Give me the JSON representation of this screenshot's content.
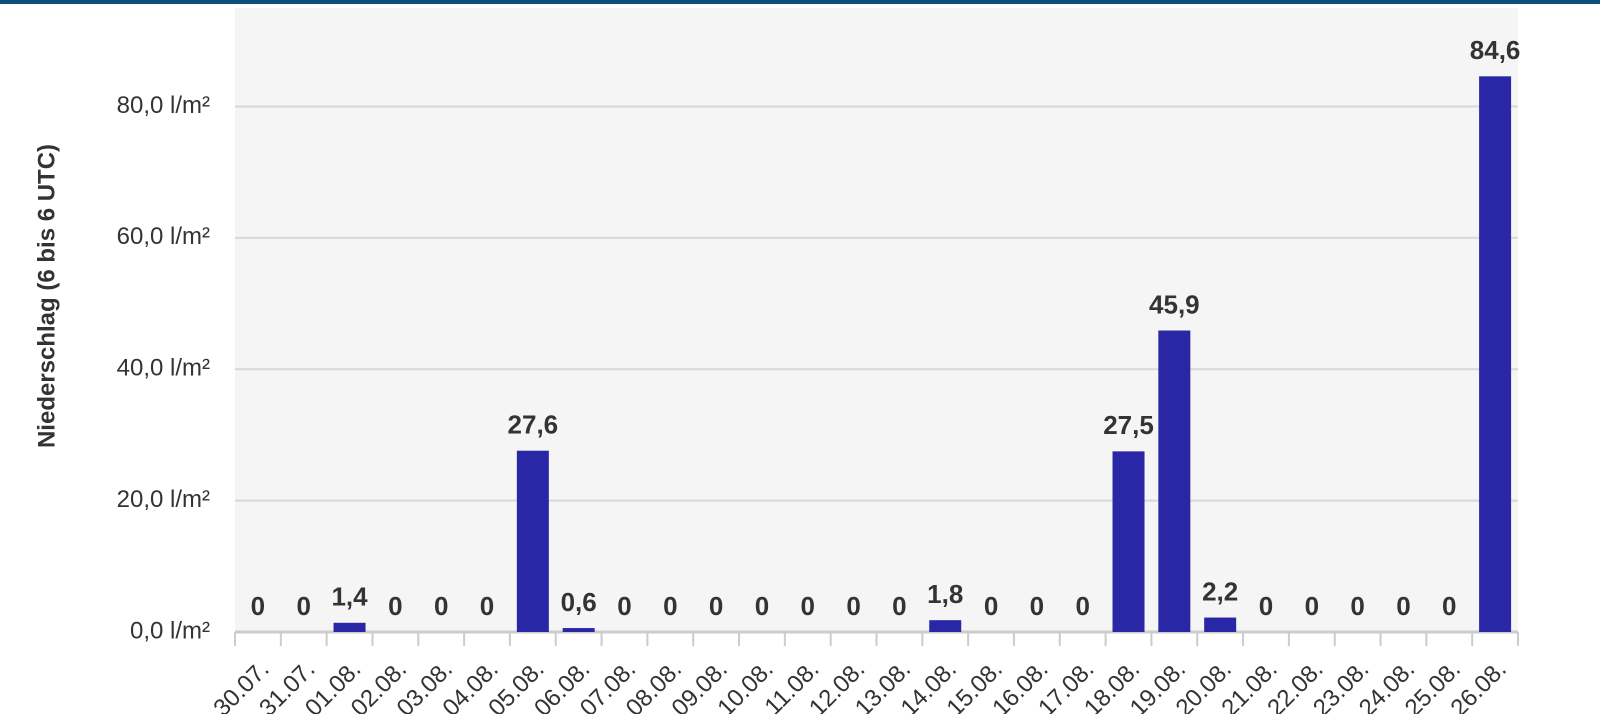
{
  "chart_data": {
    "type": "bar",
    "y_axis_label": "Niederschlag (6 bis 6 UTC)",
    "categories": [
      "30.07.",
      "31.07.",
      "01.08.",
      "02.08.",
      "03.08.",
      "04.08.",
      "05.08.",
      "06.08.",
      "07.08.",
      "08.08.",
      "09.08.",
      "10.08.",
      "11.08.",
      "12.08.",
      "13.08.",
      "14.08.",
      "15.08.",
      "16.08.",
      "17.08.",
      "18.08.",
      "19.08.",
      "20.08.",
      "21.08.",
      "22.08.",
      "23.08.",
      "24.08.",
      "25.08.",
      "26.08."
    ],
    "values": [
      0,
      0,
      1.4,
      0,
      0,
      0,
      27.6,
      0.6,
      0,
      0,
      0,
      0,
      0,
      0,
      0,
      1.8,
      0,
      0,
      0,
      27.5,
      45.9,
      2.2,
      0,
      0,
      0,
      0,
      0,
      84.6
    ],
    "value_labels": [
      "0",
      "0",
      "1,4",
      "0",
      "0",
      "0",
      "27,6",
      "0,6",
      "0",
      "0",
      "0",
      "0",
      "0",
      "0",
      "0",
      "1,8",
      "0",
      "0",
      "0",
      "27,5",
      "45,9",
      "2,2",
      "0",
      "0",
      "0",
      "0",
      "0",
      "84,6"
    ],
    "color": "#2a27a6",
    "ylim": [
      0,
      95
    ],
    "yticks": [
      {
        "value": 0,
        "label": "0,0 l/m²"
      },
      {
        "value": 20,
        "label": "20,0 l/m²"
      },
      {
        "value": 40,
        "label": "40,0 l/m²"
      },
      {
        "value": 60,
        "label": "60,0 l/m²"
      },
      {
        "value": 80,
        "label": "80,0 l/m²"
      }
    ],
    "grid": true
  }
}
